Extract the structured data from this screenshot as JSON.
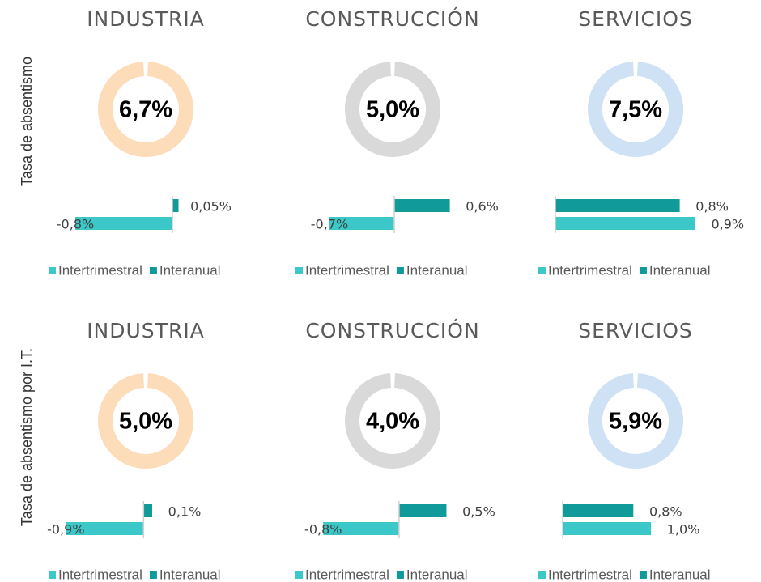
{
  "row_labels": [
    "Tasa de absentismo",
    "Tasa de absentismo por I.T."
  ],
  "chart_data": [
    {
      "type": "donut",
      "title": "INDUSTRIA",
      "values": [
        6.7
      ],
      "value_labels": [
        "6,7%"
      ],
      "color": "#fddcba"
    },
    {
      "type": "hbar",
      "xlim": [
        -1.2,
        0.4
      ],
      "series": [
        {
          "name": "Intertrimestral",
          "color": "#3cc8c8",
          "values": [
            -0.8
          ],
          "value_labels": [
            "-0,8%"
          ]
        },
        {
          "name": "Interanual",
          "color": "#109a9a",
          "values": [
            0.05
          ],
          "value_labels": [
            "0,05%"
          ]
        }
      ]
    },
    {
      "type": "donut",
      "title": "CONSTRUCCIÓN",
      "values": [
        5.0
      ],
      "value_labels": [
        "5,0%"
      ],
      "color": "#d9d9d9"
    },
    {
      "type": "hbar",
      "xlim": [
        -1.05,
        1.05
      ],
      "series": [
        {
          "name": "Intertrimestral",
          "color": "#3cc8c8",
          "values": [
            -0.7
          ],
          "value_labels": [
            "-0,7%"
          ]
        },
        {
          "name": "Interanual",
          "color": "#109a9a",
          "values": [
            0.6
          ],
          "value_labels": [
            "0,6%"
          ]
        }
      ]
    },
    {
      "type": "donut",
      "title": "SERVICIOS",
      "values": [
        7.5
      ],
      "value_labels": [
        "7,5%"
      ],
      "color": "#cfe2f5"
    },
    {
      "type": "hbar",
      "xlim": [
        0,
        1.25
      ],
      "series": [
        {
          "name": "Intertrimestral",
          "color": "#3cc8c8",
          "values": [
            0.9
          ],
          "value_labels": [
            "0,9%"
          ]
        },
        {
          "name": "Interanual",
          "color": "#109a9a",
          "values": [
            0.8
          ],
          "value_labels": [
            "0,8%"
          ]
        }
      ]
    },
    {
      "type": "donut",
      "title": "INDUSTRIA",
      "values": [
        5.0
      ],
      "value_labels": [
        "5,0%"
      ],
      "color": "#fddcba"
    },
    {
      "type": "hbar",
      "xlim": [
        -1.1,
        1.15
      ],
      "series": [
        {
          "name": "Intertrimestral",
          "color": "#3cc8c8",
          "values": [
            -0.9
          ],
          "value_labels": [
            "-0,9%"
          ]
        },
        {
          "name": "Interanual",
          "color": "#109a9a",
          "values": [
            0.1
          ],
          "value_labels": [
            "0,1%"
          ]
        }
      ]
    },
    {
      "type": "donut",
      "title": "CONSTRUCCIÓN",
      "values": [
        4.0
      ],
      "value_labels": [
        "4,0%"
      ],
      "color": "#d9d9d9"
    },
    {
      "type": "hbar",
      "xlim": [
        -1.05,
        1.0
      ],
      "series": [
        {
          "name": "Intertrimestral",
          "color": "#3cc8c8",
          "values": [
            -0.8
          ],
          "value_labels": [
            "-0,8%"
          ]
        },
        {
          "name": "Interanual",
          "color": "#109a9a",
          "values": [
            0.5
          ],
          "value_labels": [
            "0,5%"
          ]
        }
      ]
    },
    {
      "type": "donut",
      "title": "SERVICIOS",
      "values": [
        5.9
      ],
      "value_labels": [
        "5,9%"
      ],
      "color": "#cfe2f5"
    },
    {
      "type": "hbar",
      "xlim": [
        0,
        2.2
      ],
      "series": [
        {
          "name": "Intertrimestral",
          "color": "#3cc8c8",
          "values": [
            1.0
          ],
          "value_labels": [
            "1,0%"
          ]
        },
        {
          "name": "Interanual",
          "color": "#109a9a",
          "values": [
            0.8
          ],
          "value_labels": [
            "0,8%"
          ]
        }
      ]
    }
  ]
}
